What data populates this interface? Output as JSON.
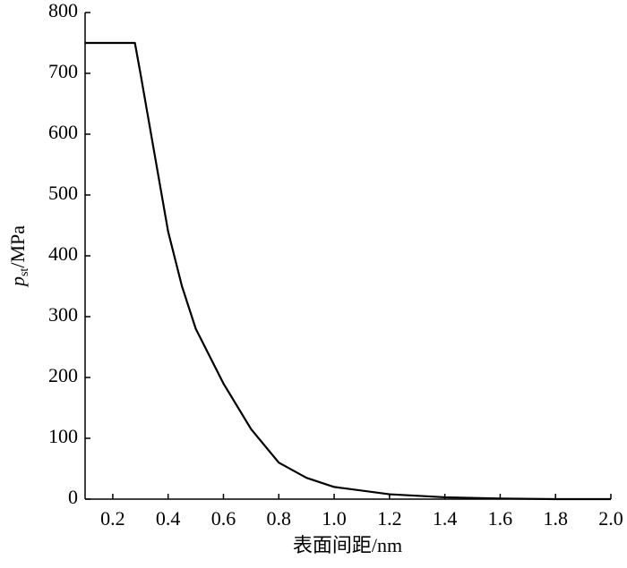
{
  "chart_data": {
    "type": "line",
    "x_label": "表面间距/nm",
    "y_label": {
      "symbol": "p",
      "subscript": "st",
      "unit": "/MPa"
    },
    "x": [
      0.1,
      0.28,
      0.3,
      0.35,
      0.4,
      0.45,
      0.5,
      0.6,
      0.7,
      0.8,
      0.9,
      1.0,
      1.2,
      1.4,
      1.6,
      1.8,
      2.0
    ],
    "series": [
      {
        "color": "#000000",
        "values": [
          750,
          750,
          700,
          570,
          440,
          350,
          280,
          190,
          115,
          60,
          35,
          20,
          8,
          3,
          1,
          0,
          0
        ]
      }
    ],
    "xlim": [
      0.1,
      2.0
    ],
    "xticks": [
      0.2,
      0.4,
      0.6,
      0.8,
      {
        "value": 1.0,
        "label": "1.0"
      },
      1.2,
      1.4,
      1.6,
      1.8,
      {
        "value": 2.0,
        "label": "2.0"
      }
    ],
    "ylim": [
      0,
      800
    ],
    "yticks": [
      0,
      100,
      200,
      300,
      400,
      500,
      600,
      700,
      800
    ]
  }
}
